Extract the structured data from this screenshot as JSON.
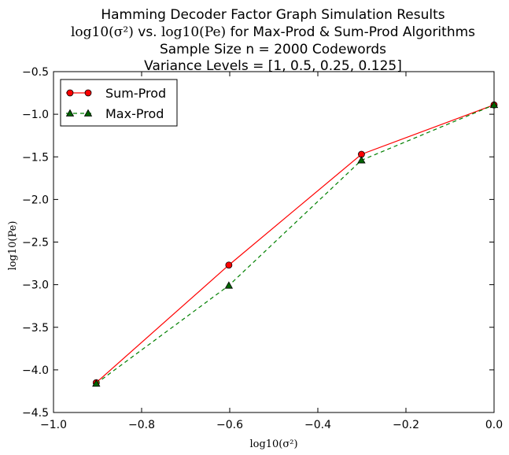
{
  "chart_data": {
    "type": "line",
    "title_lines": {
      "line1": "Hamming Decoder Factor Graph Simulation Results",
      "line2_math_x": "log10(σ²)",
      "line2_mid": " vs. ",
      "line2_math_y": "log10(Pe)",
      "line2_rest": " for Max-Prod & Sum-Prod Algorithms",
      "line3": "Sample Size n = 2000 Codewords",
      "line4": "Variance Levels = [1, 0.5, 0.25, 0.125]"
    },
    "xlabel": "log10(σ²)",
    "ylabel": "log10(Pe)",
    "xlim": [
      -1.0,
      0.0
    ],
    "ylim": [
      -4.5,
      -0.5
    ],
    "xticks": [
      -1.0,
      -0.8,
      -0.6,
      -0.4,
      -0.2,
      0.0
    ],
    "xtick_labels": [
      "−1.0",
      "−0.8",
      "−0.6",
      "−0.4",
      "−0.2",
      "0.0"
    ],
    "yticks": [
      -4.5,
      -4.0,
      -3.5,
      -3.0,
      -2.5,
      -2.0,
      -1.5,
      -1.0,
      -0.5
    ],
    "ytick_labels": [
      "−4.5",
      "−4.0",
      "−3.5",
      "−3.0",
      "−2.5",
      "−2.0",
      "−1.5",
      "−1.0",
      "−0.5"
    ],
    "grid": false,
    "legend_position": "upper-left",
    "series": [
      {
        "name": "Sum-Prod",
        "color": "#ff0000",
        "marker": "circle",
        "marker_fill": "#ff0000",
        "line_style": "solid",
        "x": [
          -0.903,
          -0.602,
          -0.301,
          0.0
        ],
        "y": [
          -4.15,
          -2.77,
          -1.47,
          -0.89
        ]
      },
      {
        "name": "Max-Prod",
        "color": "#008000",
        "marker": "triangle",
        "marker_fill": "#006400",
        "line_style": "dashed",
        "x": [
          -0.903,
          -0.602,
          -0.301,
          0.0
        ],
        "y": [
          -4.16,
          -3.01,
          -1.54,
          -0.89
        ]
      }
    ]
  }
}
